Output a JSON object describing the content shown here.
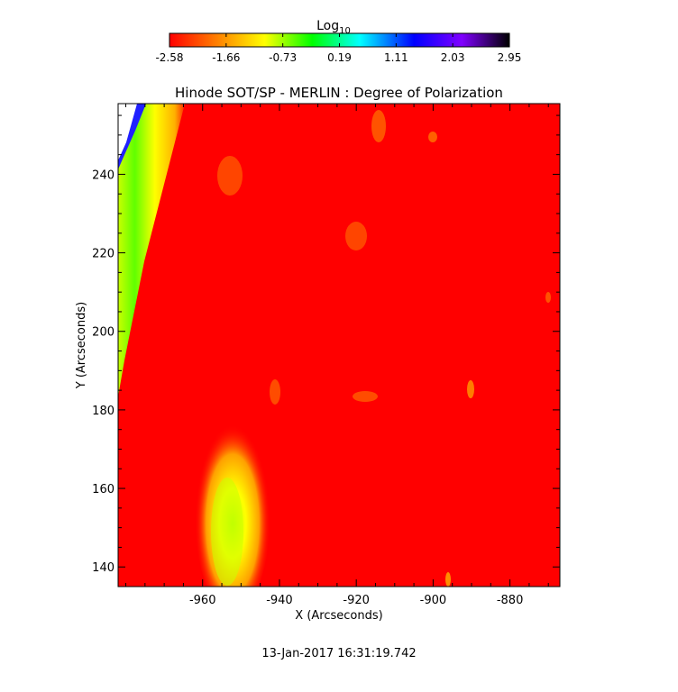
{
  "chart_data": {
    "type": "heatmap",
    "title": "Hinode SOT/SP - MERLIN : Degree of Polarization",
    "xlabel": "X (Arcseconds)",
    "ylabel": "Y (Arcseconds)",
    "xlim": [
      -982,
      -867
    ],
    "ylim": [
      135,
      258
    ],
    "xticks": [
      -960,
      -940,
      -920,
      -900,
      -880
    ],
    "yticks": [
      140,
      160,
      180,
      200,
      220,
      240
    ],
    "colorbar": {
      "title_base": "Log",
      "title_sub": "10",
      "min": -2.58,
      "max": 2.95,
      "ticks": [
        "-2.58",
        "-1.66",
        "-0.73",
        "0.19",
        "1.11",
        "2.03",
        "2.95"
      ],
      "colormap": [
        "#ff0000",
        "#ff8000",
        "#ffff00",
        "#00ff00",
        "#00ffff",
        "#0000ff",
        "#8000ff",
        "#000000"
      ]
    },
    "background_value": -2.58,
    "background_color": "#ff0000",
    "features": [
      {
        "name": "limb-band",
        "description_value": -1.2,
        "x_range_at_top": [
          -976,
          -964
        ],
        "x_range_at_bottom": [
          -982,
          -981
        ]
      },
      {
        "name": "bright-plume",
        "center": [
          -950,
          150
        ],
        "value": -1.4
      },
      {
        "name": "saturated-corner",
        "x_range": [
          -982,
          -977
        ],
        "y_range": [
          240,
          258
        ],
        "value": 2.0
      }
    ],
    "grid": false,
    "legend": "none"
  },
  "footer": {
    "timestamp": "13-Jan-2017 16:31:19.742"
  }
}
